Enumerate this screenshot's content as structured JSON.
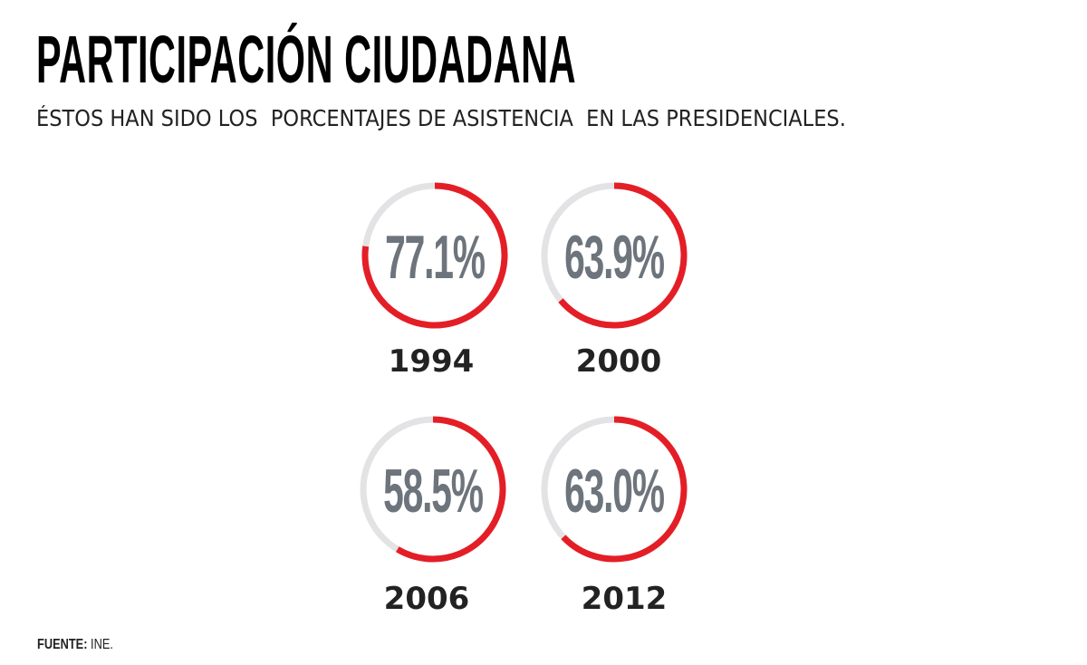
{
  "title": "PARTICIPACIÓN CIUDADANA",
  "subtitle": "ÉSTOS HAN SIDO LOS  PORCENTAJES DE ASISTENCIA  EN LAS PRESIDENCIALES.",
  "source": {
    "label": "FUENTE:",
    "value": "INE."
  },
  "colors": {
    "filled": "#e41e26",
    "track": "#e3e3e5",
    "value_text": "#6d747c",
    "year_text": "#222222"
  },
  "chart_data": {
    "type": "pie",
    "subtype": "donut-gauges",
    "categories": [
      "1994",
      "2000",
      "2006",
      "2012"
    ],
    "values": [
      77.1,
      63.9,
      58.5,
      63.0
    ],
    "labels": [
      "77.1%",
      "63.9%",
      "58.5%",
      "63.0%"
    ],
    "range": [
      0,
      100
    ]
  }
}
